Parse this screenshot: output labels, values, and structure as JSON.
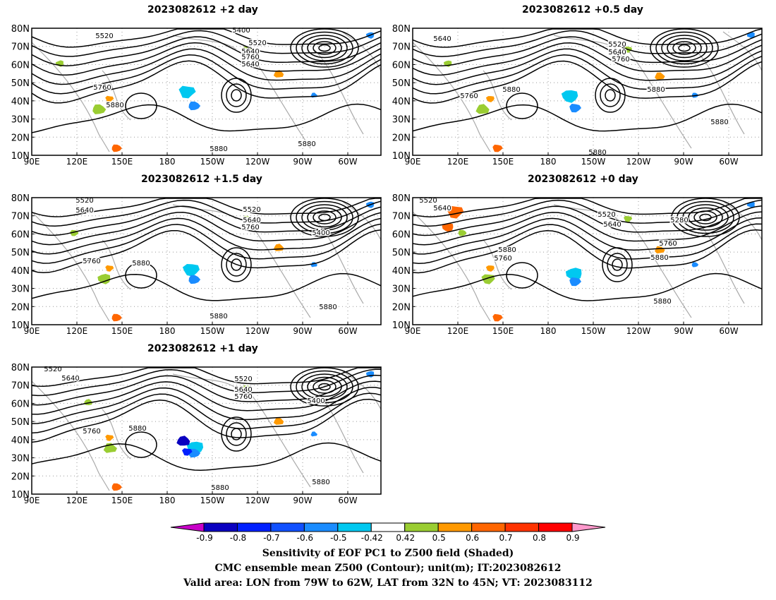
{
  "panels": [
    {
      "title": "2023082612 +2 day"
    },
    {
      "title": "2023082612 +0.5 day"
    },
    {
      "title": "2023082612 +1.5 day"
    },
    {
      "title": "2023082612 +0 day"
    },
    {
      "title": "2023082612 +1 day"
    }
  ],
  "axes": {
    "lat_ticks": [
      "80N",
      "70N",
      "60N",
      "50N",
      "40N",
      "30N",
      "20N",
      "10N"
    ],
    "lon_ticks": [
      "90E",
      "120E",
      "150E",
      "180",
      "150W",
      "120W",
      "90W",
      "60W"
    ]
  },
  "colorbar": {
    "ticks": [
      "-0.9",
      "-0.8",
      "-0.7",
      "-0.6",
      "-0.5",
      "-0.42",
      "0.42",
      "0.5",
      "0.6",
      "0.7",
      "0.8",
      "0.9"
    ],
    "colors": [
      "#c800c8",
      "#0a00c0",
      "#0020ff",
      "#1050ff",
      "#1a8cff",
      "#00c8f0",
      "#ffffff",
      "#9acd32",
      "#ff9900",
      "#ff6600",
      "#ff3300",
      "#ff0000",
      "#ff99cc"
    ]
  },
  "caption": {
    "line1": "Sensitivity of EOF PC1 to Z500 field (Shaded)",
    "line2": "CMC ensemble mean Z500 (Contour); unit(m); IT:2023082612",
    "line3": "Valid area: LON from 79W to 62W, LAT from 32N to 45N; VT: 2023083112"
  },
  "chart_data": {
    "type": "heatmap",
    "lat_range": [
      "10N",
      "80N"
    ],
    "lon_range": [
      "90E",
      "45W"
    ],
    "contour_labels": {
      "panel_plus2": [
        "5520",
        "5400",
        "5520",
        "5640",
        "5760",
        "5640",
        "5760",
        "5880",
        "5880",
        "5880"
      ],
      "panel_plus05": [
        "5640",
        "5520",
        "5640",
        "5760",
        "5760",
        "5880",
        "5880",
        "5880",
        "5880"
      ],
      "panel_plus15": [
        "5520",
        "5640",
        "5520",
        "5640",
        "5760",
        "5400",
        "5760",
        "5880",
        "5880",
        "5880"
      ],
      "panel_plus0": [
        "5520",
        "5640",
        "5520",
        "5640",
        "5280",
        "5760",
        "5880",
        "5760",
        "5880",
        "5880"
      ],
      "panel_plus1": [
        "5520",
        "5640",
        "5520",
        "5640",
        "5760",
        "5400",
        "5760",
        "5880",
        "5880",
        "5880"
      ]
    }
  }
}
